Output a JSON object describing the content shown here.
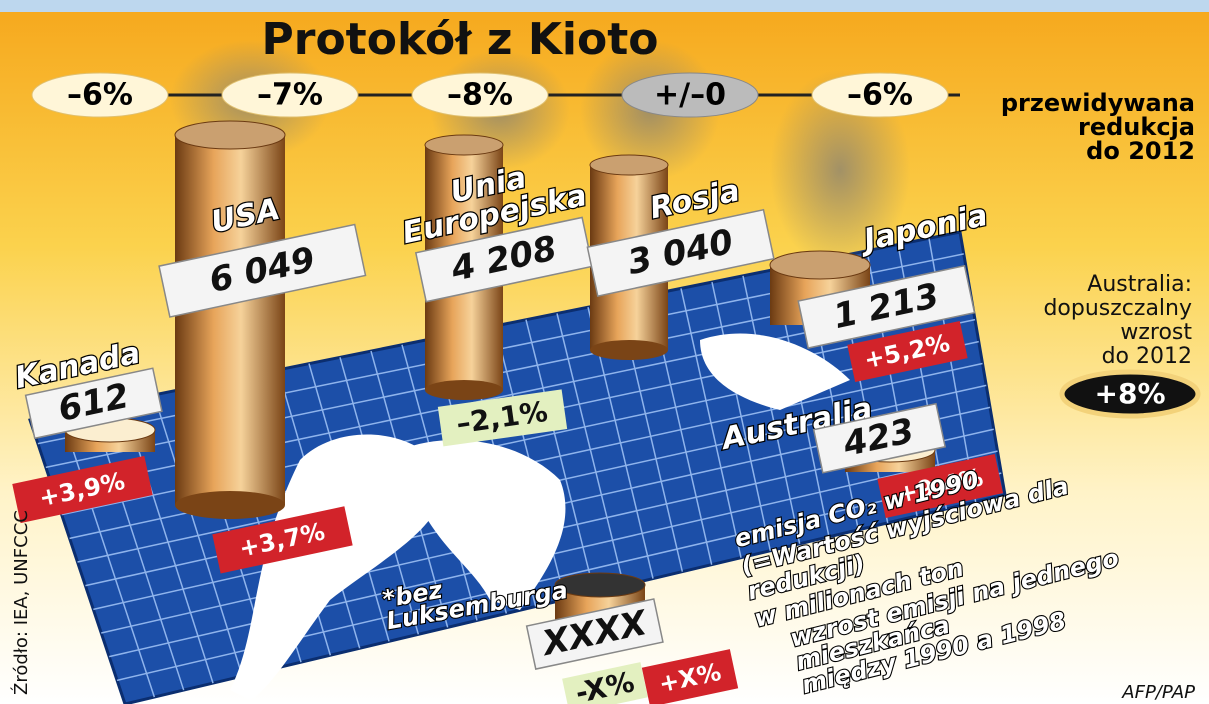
{
  "title": "Protokół z Kioto",
  "reductions": [
    "–6%",
    "–7%",
    "–8%",
    "+/–0",
    "–6%"
  ],
  "reduction_note": [
    "przewidywana",
    "redukcja",
    "do 2012"
  ],
  "countries": [
    {
      "name": [
        "Kanada"
      ],
      "emission": "612",
      "growth": "+3,9%"
    },
    {
      "name": [
        "USA"
      ],
      "emission": "6 049",
      "growth": "+3,7%"
    },
    {
      "name": [
        "Unia",
        "Europejska"
      ],
      "emission": "4 208",
      "growth": "–2,1%"
    },
    {
      "name": [
        "Rosja"
      ],
      "emission": "3 040"
    },
    {
      "name": [
        "Japonia"
      ],
      "emission": "1 213",
      "growth": "+5,2%"
    },
    {
      "name": [
        "Australia"
      ],
      "emission": "423",
      "growth": "+9,4%"
    }
  ],
  "australia_note": {
    "lines": [
      "Australia:",
      "dopuszczalny",
      "wzrost",
      "do 2012"
    ],
    "badge": "+8%"
  },
  "legend": {
    "sample": "XXXX",
    "decrease": "-X%",
    "increase": "+X%",
    "lines": [
      "emisja CO₂ w 1990",
      "(=Wartość wyjściowa dla",
      "redukcji)",
      "w milionach ton",
      "wzrost emisji na jednego",
      "mieszkańca",
      "między 1990 a 1998"
    ]
  },
  "footnote": [
    "*bez",
    "Luksemburga"
  ],
  "source": "Źródło: IEA, UNFCCC",
  "credit": "AFP/PAP"
}
